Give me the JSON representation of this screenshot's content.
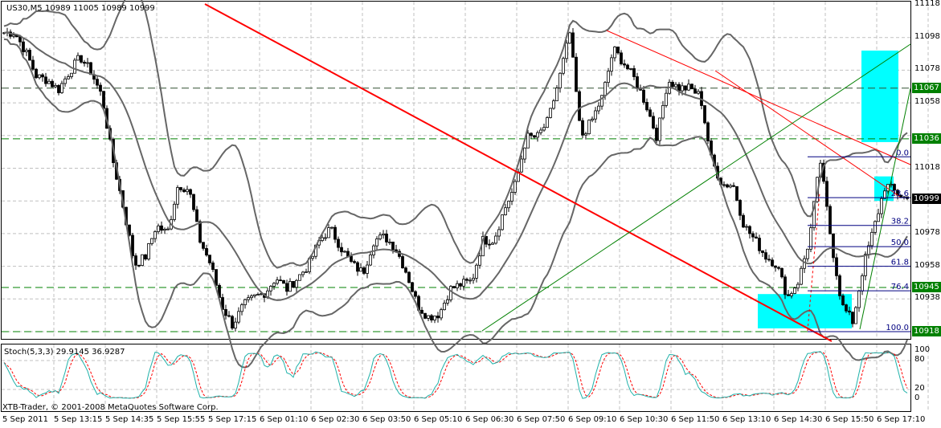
{
  "header": {
    "symbol": "US30,M5",
    "ohlc": "10989 11005 10989 10999"
  },
  "indicator": {
    "label": "Stoch(5,3,3) 29.9145 36.9287"
  },
  "copyright": "XTB-Trader, © 2001-2008 MetaQuotes Software Corp.",
  "price_axis": [
    "11118",
    "11098",
    "11078",
    "11058",
    "11018",
    "10978",
    "10958",
    "10938"
  ],
  "price_tags": [
    {
      "value": "11067",
      "color": "#008000"
    },
    {
      "value": "11036",
      "color": "#008000"
    },
    {
      "value": "10999",
      "color": "#000000"
    },
    {
      "value": "10945",
      "color": "#008000"
    },
    {
      "value": "10918",
      "color": "#008000"
    }
  ],
  "stoch_axis": [
    "100",
    "80",
    "20",
    "0"
  ],
  "time_axis": [
    "5 Sep 2011",
    "5 Sep 13:15",
    "5 Sep 14:35",
    "5 Sep 15:55",
    "5 Sep 17:15",
    "6 Sep 01:10",
    "6 Sep 02:30",
    "6 Sep 03:50",
    "6 Sep 05:10",
    "6 Sep 06:30",
    "6 Sep 07:50",
    "6 Sep 09:10",
    "6 Sep 10:30",
    "6 Sep 11:50",
    "6 Sep 13:10",
    "6 Sep 14:30",
    "6 Sep 15:50",
    "6 Sep 17:10"
  ],
  "fibo_levels": [
    "0.0",
    "23.6",
    "38.2",
    "50.0",
    "61.8",
    "76.4",
    "100.0"
  ],
  "fibo_prices": [
    11025,
    11000,
    10983,
    10970,
    10958,
    10943,
    10918
  ],
  "horizontal_lines": [
    11067,
    11036,
    10945,
    10918
  ],
  "chart_data": {
    "type": "candlestick",
    "symbol": "US30",
    "timeframe": "M5",
    "price_range": [
      10915,
      11120
    ],
    "close_path": [
      11101,
      11101,
      11089,
      11074,
      11072,
      11066,
      11077,
      11086,
      11077,
      11062,
      11023,
      10993,
      10959,
      10964,
      10983,
      10978,
      11008,
      11005,
      10974,
      10959,
      10934,
      10922,
      10934,
      10939,
      10942,
      10951,
      10944,
      10951,
      10959,
      10974,
      10981,
      10969,
      10959,
      10954,
      10974,
      10976,
      10969,
      10954,
      10934,
      10927,
      10929,
      10944,
      10947,
      10949,
      10974,
      10974,
      10993,
      11008,
      11037,
      11037,
      11047,
      11072,
      11101,
      11037,
      11047,
      11062,
      11091,
      11082,
      11072,
      11057,
      11037,
      11072,
      11067,
      11067,
      11062,
      11023,
      11008,
      11008,
      10983,
      10974,
      10964,
      10959,
      10939,
      10949,
      10974,
      11023,
      10974,
      10934,
      10924,
      10959,
      10983,
      11008,
      11003,
      10999
    ],
    "colors": {
      "up": "#ffffff",
      "down": "#000000",
      "bands": "#666666",
      "stoch_main": "#20b2aa",
      "stoch_signal": "#ff0000",
      "trend": "#ff0000",
      "channel": "#008000",
      "zone": "#00ffff",
      "fibo": "#000080"
    }
  }
}
